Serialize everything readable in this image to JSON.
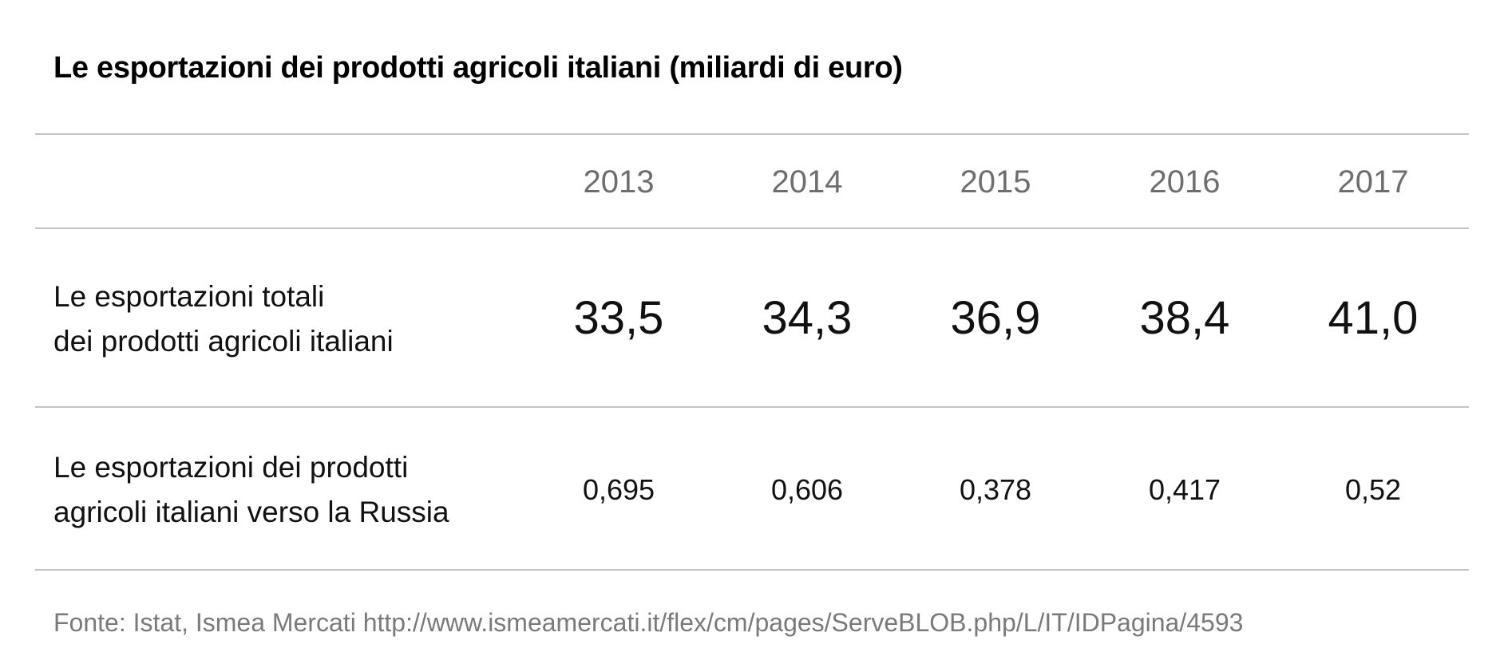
{
  "title": "Le esportazioni dei prodotti agricoli italiani (miliardi di euro)",
  "chart_data": {
    "type": "table",
    "title": "Le esportazioni dei prodotti agricoli italiani (miliardi di euro)",
    "columns": [
      "2013",
      "2014",
      "2015",
      "2016",
      "2017"
    ],
    "rows": [
      {
        "label_lines": [
          "Le esportazioni totali",
          "dei prodotti agricoli italiani"
        ],
        "values": [
          "33,5",
          "34,3",
          "36,9",
          "38,4",
          "41,0"
        ]
      },
      {
        "label_lines": [
          "Le esportazioni dei prodotti",
          "agricoli italiani verso la Russia"
        ],
        "values": [
          "0,695",
          "0,606",
          "0,378",
          "0,417",
          "0,52"
        ]
      }
    ]
  },
  "source": "Fonte: Istat, Ismea Mercati http://www.ismeamercati.it/flex/cm/pages/ServeBLOB.php/L/IT/IDPagina/4593",
  "colors": {
    "header_text": "#6e6e6e",
    "source_text": "#7a7a7a",
    "rule": "#c4c4c4"
  }
}
